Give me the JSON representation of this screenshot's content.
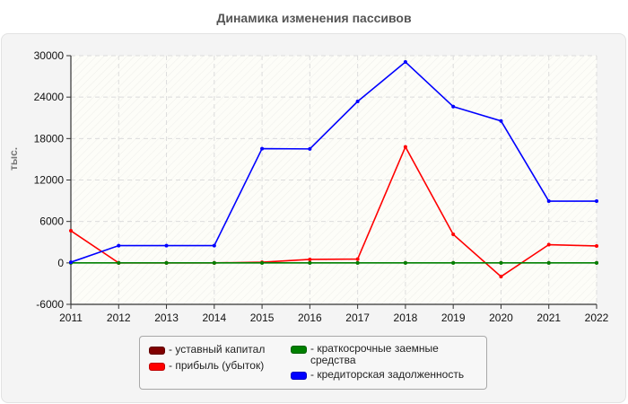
{
  "chart_data": {
    "type": "line",
    "title": "Динамика изменения пассивов",
    "xlabel": "",
    "ylabel": "тыс.",
    "ylim": [
      -6000,
      30000
    ],
    "yticks": [
      -6000,
      0,
      6000,
      12000,
      18000,
      24000,
      30000
    ],
    "grid": true,
    "legend_position": "bottom",
    "categories": [
      "2011",
      "2012",
      "2013",
      "2014",
      "2015",
      "2016",
      "2017",
      "2018",
      "2019",
      "2020",
      "2021",
      "2022"
    ],
    "series": [
      {
        "name": "уставный капитал",
        "color": "#800000",
        "values": [
          10,
          10,
          10,
          10,
          10,
          10,
          10,
          10,
          10,
          10,
          10,
          10
        ]
      },
      {
        "name": "прибыль (убыток)",
        "color": "#ff0000",
        "values": [
          4650,
          0,
          0,
          0,
          100,
          500,
          550,
          16800,
          4130,
          -1980,
          2640,
          2450
        ]
      },
      {
        "name": "краткосрочные заемные средства",
        "color": "#008000",
        "values": [
          0,
          0,
          0,
          0,
          0,
          0,
          0,
          0,
          0,
          0,
          0,
          0
        ]
      },
      {
        "name": "кредиторская задолженность",
        "color": "#0000ff",
        "values": [
          100,
          2500,
          2500,
          2500,
          16540,
          16500,
          23370,
          29090,
          22630,
          20550,
          8940,
          8940
        ]
      }
    ]
  },
  "legend": {
    "items": [
      {
        "label": "- уставный капитал",
        "color": "#800000"
      },
      {
        "label": "- прибыль (убыток)",
        "color": "#ff0000"
      },
      {
        "label": "- краткосрочные заемные\nсредства",
        "color": "#008000"
      },
      {
        "label": "- кредиторская задолженность",
        "color": "#0000ff"
      }
    ]
  }
}
